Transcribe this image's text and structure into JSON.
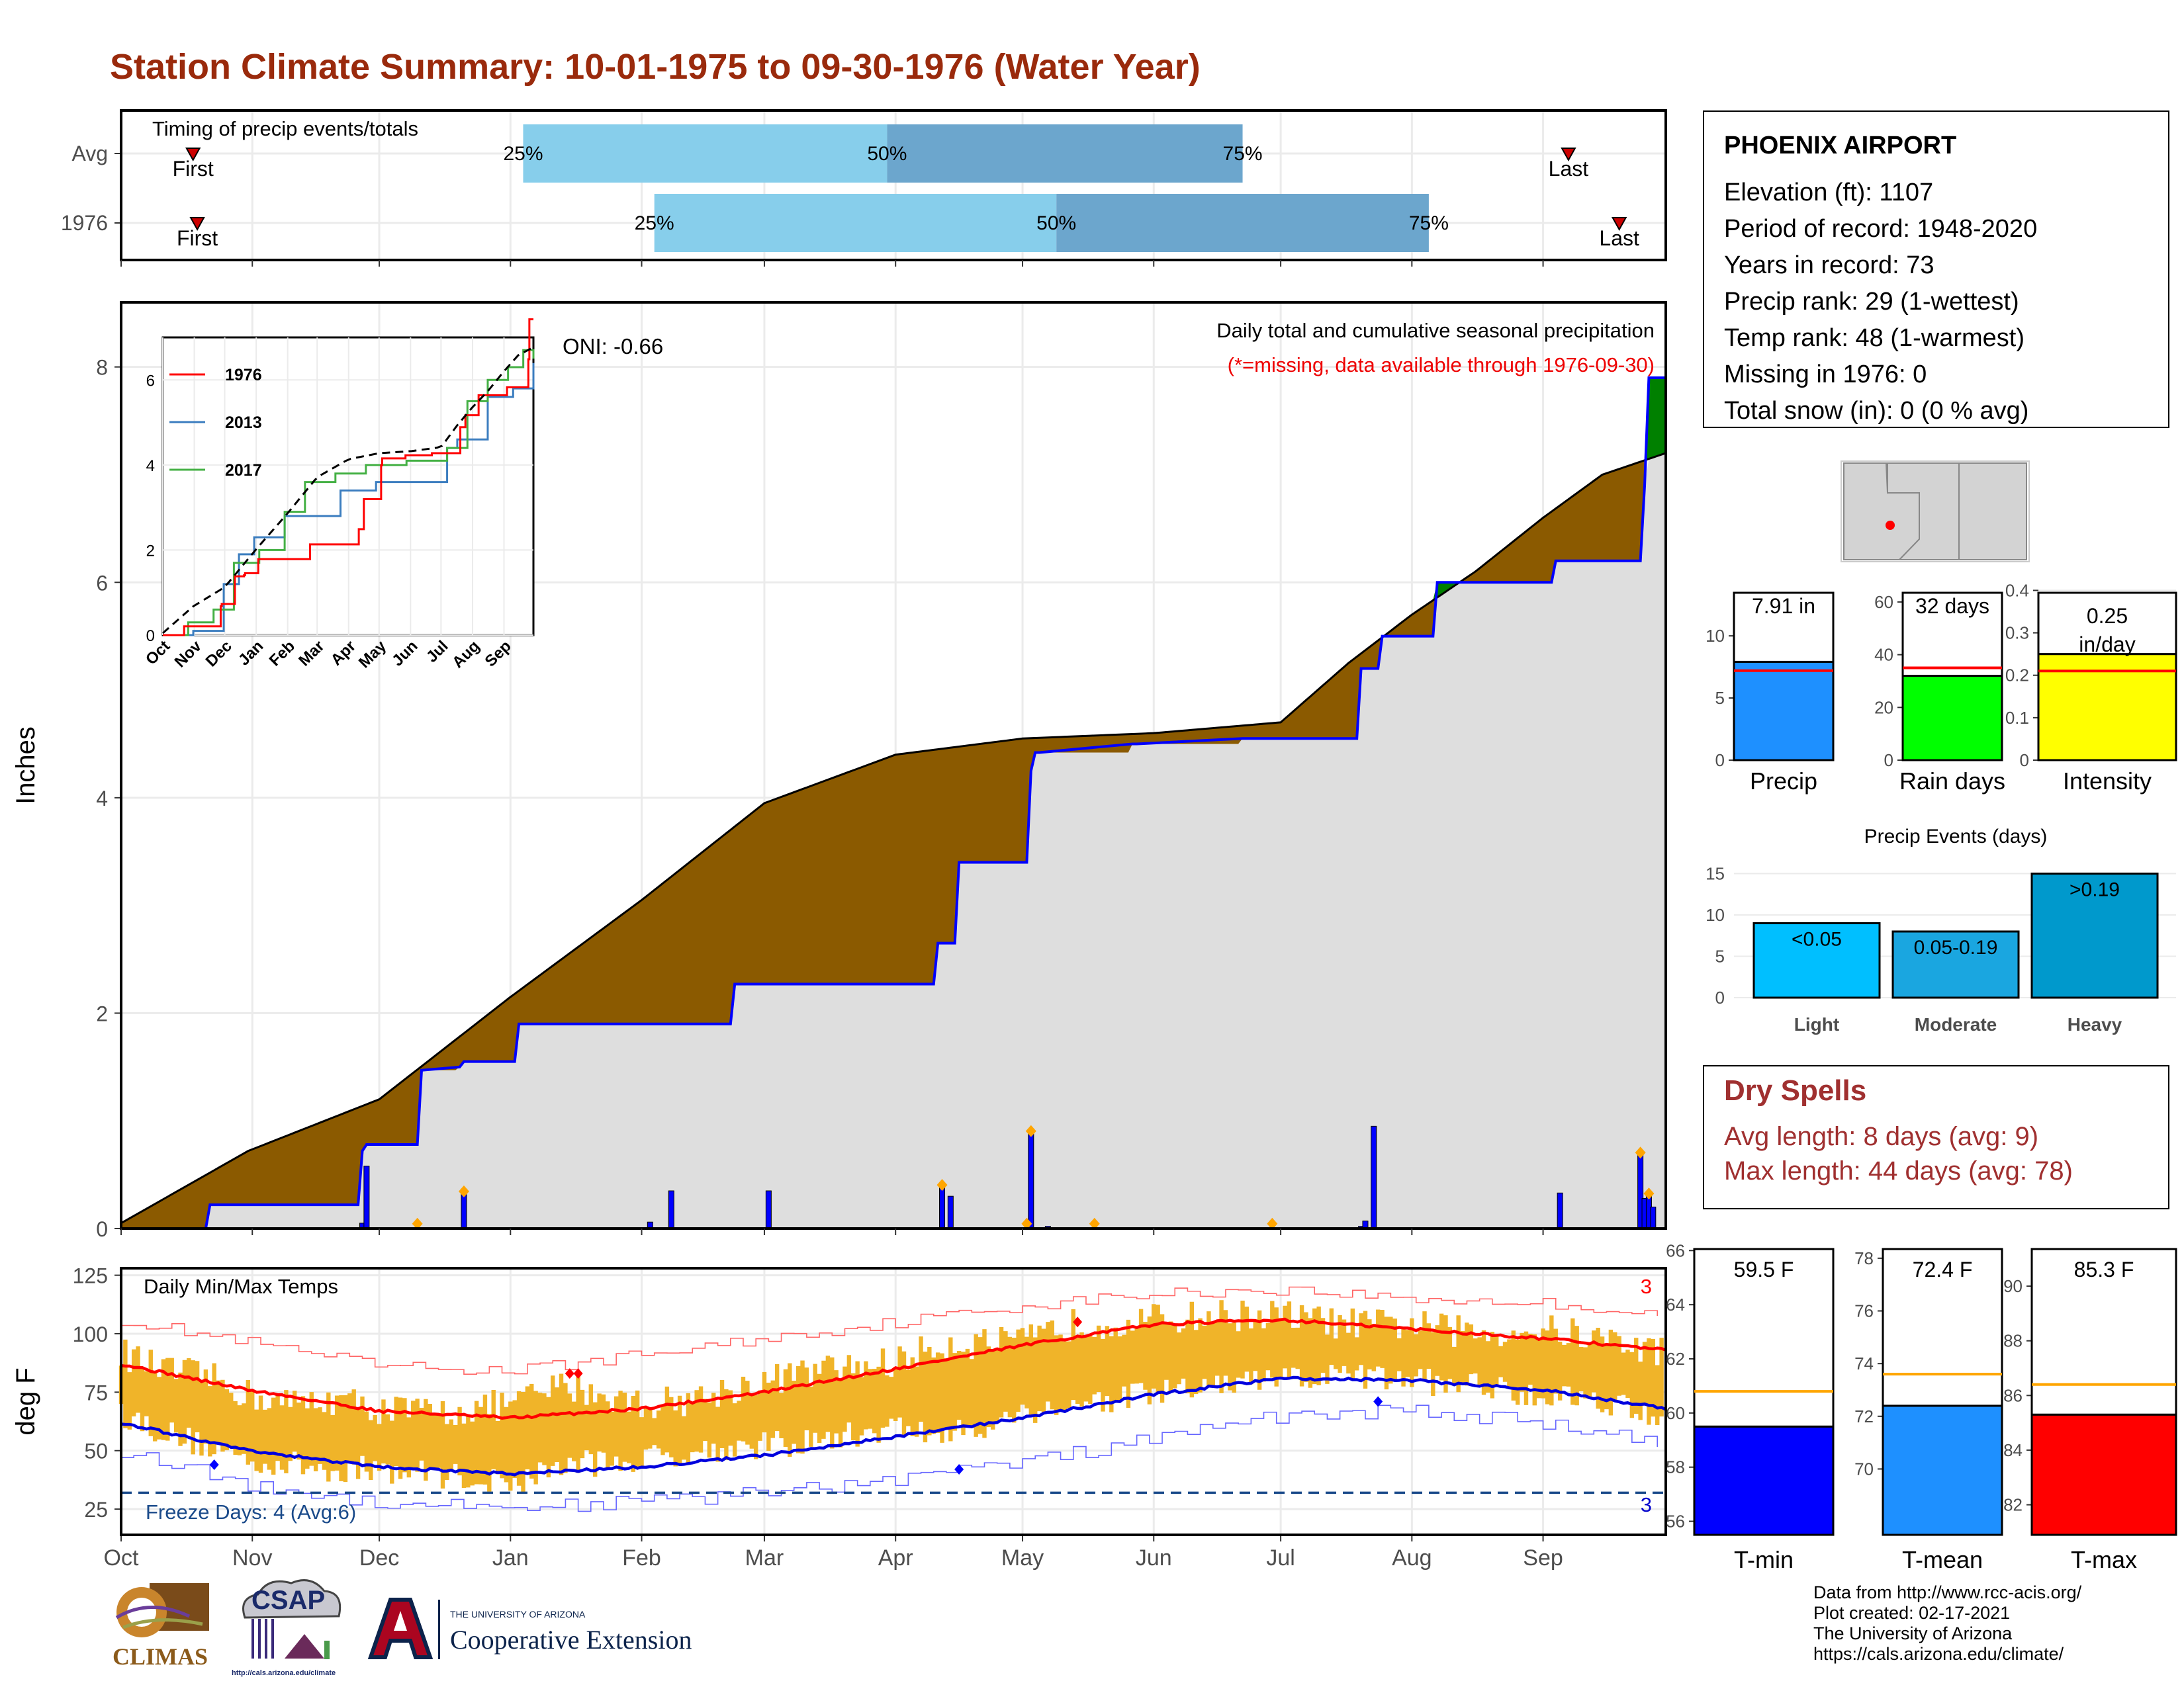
{
  "title": "Station Climate Summary: 10-01-1975 to 09-30-1976 (Water Year)",
  "colors": {
    "title": "#9a2a0c",
    "cum_above": "#8b5a00",
    "cum_below": "#008000",
    "daily_bars": "#0000ff",
    "dry_spells": "#a03030"
  },
  "station": {
    "name": "PHOENIX AIRPORT",
    "lines": [
      "Elevation (ft): 1107",
      "Period of record: 1948-2020",
      "Years in record: 73",
      "Precip rank: 29 (1-wettest)",
      "Temp rank: 48 (1-warmest)",
      "Missing in 1976: 0",
      "Total snow (in): 0 (0 % avg)"
    ]
  },
  "dry_spells": {
    "heading": "Dry Spells",
    "avg_length": "Avg length: 8 days (avg: 9)",
    "max_length": "Max length: 44 days (avg: 78)"
  },
  "credits": [
    "Data from http://www.rcc-acis.org/",
    "Plot created: 02-17-2021",
    "The University of Arizona",
    "https://cals.arizona.edu/climate/"
  ],
  "logos": {
    "climas": "CLIMAS",
    "csap": "CSAP",
    "csap_url": "http://cals.arizona.edu/climate",
    "ua_small": "THE UNIVERSITY OF ARIZONA",
    "ua_big": "Cooperative Extension"
  },
  "month_labels": [
    "Oct",
    "Nov",
    "Dec",
    "Jan",
    "Feb",
    "Mar",
    "Apr",
    "May",
    "Jun",
    "Jul",
    "Aug",
    "Sep"
  ],
  "chart_data": [
    {
      "type": "bar",
      "name": "timing",
      "title": "Timing of precip events/totals",
      "rows": [
        {
          "label": "Avg",
          "first_day": 17,
          "p25_day": 95,
          "p50_day": 181,
          "p75_day": 265,
          "last_day": 342,
          "first_label": "First",
          "last_label": "Last"
        },
        {
          "label": "1976",
          "first_day": 18,
          "p25_day": 126,
          "p50_day": 221,
          "p75_day": 309,
          "last_day": 354,
          "first_label": "First",
          "last_label": "Last"
        }
      ],
      "pct_labels": [
        "25%",
        "50%",
        "75%"
      ]
    },
    {
      "type": "area",
      "name": "cumulative_precip",
      "title": "Daily total and cumulative seasonal precipitation",
      "subtitle": "(*=missing, data available through 1976-09-30)",
      "oni": "ONI: -0.66",
      "ylabel": "Inches",
      "ylim": [
        0,
        8.6
      ],
      "yticks": [
        0,
        2,
        4,
        6,
        8
      ],
      "avg_cumulative": {
        "day": [
          0,
          30,
          61,
          92,
          123,
          152,
          183,
          213,
          244,
          274,
          290,
          305,
          320,
          336,
          350,
          365
        ],
        "value": [
          0.05,
          0.72,
          1.2,
          2.15,
          3.05,
          3.95,
          4.4,
          4.55,
          4.6,
          4.7,
          5.25,
          5.7,
          6.1,
          6.6,
          7.0,
          7.2
        ]
      },
      "cumulative_1976": {
        "day": [
          0,
          20,
          21,
          56,
          57,
          58,
          70,
          71,
          80,
          81,
          93,
          94,
          122,
          123,
          144,
          145,
          192,
          193,
          197,
          198,
          214,
          215,
          216,
          217,
          239,
          240,
          265,
          266,
          292,
          293,
          297,
          298,
          310,
          311,
          338,
          339,
          359,
          360,
          361,
          365
        ],
        "value": [
          0,
          0,
          0.22,
          0.22,
          0.72,
          0.78,
          0.78,
          1.47,
          1.5,
          1.55,
          1.55,
          1.9,
          1.9,
          1.9,
          1.9,
          2.27,
          2.27,
          2.65,
          2.65,
          3.4,
          3.4,
          4.25,
          4.42,
          4.42,
          4.5,
          4.5,
          4.55,
          4.55,
          4.55,
          5.2,
          5.2,
          5.5,
          5.5,
          6.0,
          6.0,
          6.2,
          6.2,
          6.9,
          7.9,
          7.9
        ]
      },
      "daily_precip": {
        "day": [
          57,
          58,
          81,
          125,
          130,
          153,
          194,
          196,
          215,
          219,
          293,
          294,
          296,
          340,
          359,
          360,
          361,
          362
        ],
        "value": [
          0.05,
          0.58,
          0.32,
          0.06,
          0.35,
          0.35,
          0.38,
          0.3,
          0.88,
          0.02,
          0.02,
          0.07,
          0.95,
          0.33,
          0.68,
          0.28,
          0.3,
          0.2
        ]
      },
      "diamond_days": [
        70,
        81,
        194,
        214,
        215,
        230,
        272,
        359,
        361
      ],
      "inset": {
        "series": [
          {
            "name": "1976",
            "color": "#ff0000"
          },
          {
            "name": "2013",
            "color": "#3b7dbf"
          },
          {
            "name": "2017",
            "color": "#44b044"
          }
        ],
        "yticks": [
          0,
          2,
          4,
          6
        ],
        "xticks": [
          "Oct",
          "Nov",
          "Dec",
          "Jan",
          "Feb",
          "Mar",
          "Apr",
          "May",
          "Jun",
          "Jul",
          "Aug",
          "Sep"
        ]
      }
    },
    {
      "type": "bar",
      "name": "totals",
      "panels": [
        {
          "label": "Precip",
          "value_label": "7.91 in",
          "value": 7.91,
          "avg": 7.2,
          "ymax": 14,
          "ticks": [
            0,
            5,
            10
          ],
          "color": "#1e90ff"
        },
        {
          "label": "Rain days",
          "value_label": "32 days",
          "value": 32,
          "avg": 35,
          "ymax": 66,
          "ticks": [
            0,
            20,
            40,
            60
          ],
          "color": "#00ff00"
        },
        {
          "label": "Intensity",
          "value_label": "0.25 in/day",
          "value": 0.25,
          "avg": 0.21,
          "ymax": 0.41,
          "ticks": [
            0.0,
            0.1,
            0.2,
            0.3,
            0.4
          ],
          "color": "#ffff00"
        }
      ]
    },
    {
      "type": "bar",
      "name": "precip_events",
      "title": "Precip Events (days)",
      "categories": [
        "Light",
        "Moderate",
        "Heavy"
      ],
      "bar_labels": [
        "<0.05",
        "0.05-0.19",
        ">0.19"
      ],
      "values": [
        9,
        8,
        15
      ],
      "ylim": [
        0,
        16
      ],
      "yticks": [
        0,
        5,
        10,
        15
      ],
      "colors": [
        "#00bfff",
        "#1aa6e0",
        "#0099cc"
      ]
    },
    {
      "type": "line",
      "name": "daily_temps",
      "title": "Daily Min/Max Temps",
      "ylabel": "deg F",
      "ylim": [
        14,
        128
      ],
      "yticks": [
        25,
        50,
        75,
        100,
        125
      ],
      "freeze_label": "Freeze Days: 4 (Avg:6)",
      "freeze_line": 32,
      "record_high_count": "3",
      "record_low_count": "3",
      "avg_max": {
        "day": [
          0,
          30,
          61,
          92,
          123,
          152,
          183,
          213,
          244,
          274,
          305,
          336,
          365
        ],
        "value": [
          87,
          76,
          67,
          64,
          68,
          75,
          85,
          95,
          104,
          106,
          102,
          98,
          93
        ]
      },
      "avg_min": {
        "day": [
          0,
          30,
          61,
          92,
          123,
          152,
          183,
          213,
          244,
          274,
          305,
          336,
          365
        ],
        "value": [
          62,
          50,
          43,
          40,
          43,
          48,
          56,
          64,
          74,
          81,
          80,
          76,
          68
        ]
      },
      "record_max": {
        "day": [
          0,
          30,
          61,
          92,
          123,
          152,
          183,
          213,
          244,
          274,
          305,
          336,
          365
        ],
        "value": [
          106,
          96,
          86,
          84,
          91,
          98,
          105,
          112,
          117,
          119,
          115,
          113,
          108
        ]
      },
      "record_min": {
        "day": [
          0,
          30,
          61,
          92,
          123,
          152,
          183,
          213,
          244,
          274,
          305,
          336,
          365
        ],
        "value": [
          50,
          35,
          28,
          26,
          28,
          32,
          38,
          45,
          55,
          65,
          67,
          62,
          52
        ]
      },
      "daily_max_1976": {
        "day": [
          0,
          10,
          20,
          30,
          40,
          50,
          61,
          75,
          92,
          105,
          123,
          135,
          152,
          165,
          183,
          195,
          213,
          225,
          244,
          260,
          274,
          290,
          305,
          320,
          336,
          350,
          365
        ],
        "value": [
          92,
          84,
          82,
          74,
          70,
          72,
          68,
          66,
          70,
          78,
          70,
          72,
          80,
          84,
          88,
          96,
          96,
          104,
          106,
          108,
          108,
          104,
          104,
          100,
          102,
          98,
          92
        ]
      },
      "daily_min_1976": {
        "day": [
          0,
          10,
          20,
          30,
          40,
          50,
          61,
          75,
          92,
          105,
          123,
          135,
          152,
          165,
          183,
          195,
          213,
          225,
          244,
          260,
          274,
          290,
          305,
          320,
          336,
          350,
          365
        ],
        "value": [
          66,
          58,
          52,
          46,
          44,
          42,
          42,
          40,
          36,
          44,
          46,
          50,
          52,
          54,
          60,
          56,
          66,
          70,
          74,
          78,
          80,
          82,
          80,
          78,
          74,
          72,
          64
        ]
      },
      "record_markers": [
        {
          "day": 22,
          "value": 44,
          "kind": "low"
        },
        {
          "day": 106,
          "value": 83,
          "kind": "high"
        },
        {
          "day": 108,
          "value": 83,
          "kind": "high"
        },
        {
          "day": 198,
          "value": 42,
          "kind": "low"
        },
        {
          "day": 226,
          "value": 105,
          "kind": "high"
        },
        {
          "day": 297,
          "value": 71,
          "kind": "low"
        }
      ]
    },
    {
      "type": "bar",
      "name": "temp_totals",
      "panels": [
        {
          "label": "T-min",
          "value_label": "59.5 F",
          "value": 59.5,
          "avg": 60.8,
          "ymin": 55.5,
          "ymax": 66.3,
          "ticks": [
            56,
            58,
            60,
            62,
            64,
            66
          ],
          "color": "#0000ff"
        },
        {
          "label": "T-mean",
          "value_label": "72.4 F",
          "value": 72.4,
          "avg": 73.6,
          "ymin": 67.5,
          "ymax": 78.6,
          "ticks": [
            70,
            72,
            74,
            76,
            78
          ],
          "color": "#1e90ff"
        },
        {
          "label": "T-max",
          "value_label": "85.3 F",
          "value": 85.3,
          "avg": 86.4,
          "ymin": 80.9,
          "ymax": 91.6,
          "ticks": [
            82,
            84,
            86,
            88,
            90
          ],
          "color": "#ff0000"
        }
      ]
    }
  ]
}
